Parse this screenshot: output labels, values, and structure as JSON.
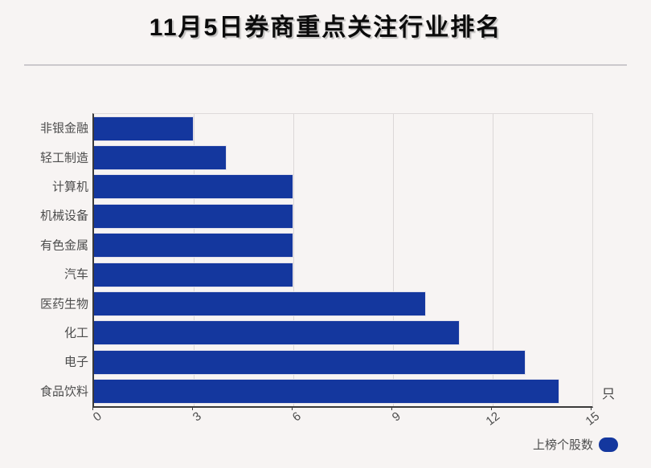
{
  "title": "11月5日券商重点关注行业排名",
  "legend": {
    "label": "上榜个股数"
  },
  "colors": {
    "bar": "#14379e",
    "background": "#f7f4f3",
    "grid": "#dbd7d7",
    "axis": "#3a3a3a",
    "label_text": "#4d4d4d",
    "title_text": "#0b0b0b"
  },
  "chart_data": {
    "type": "bar",
    "orientation": "horizontal",
    "title": "11月5日券商重点关注行业排名",
    "categories": [
      "非银金融",
      "轻工制造",
      "计算机",
      "机械设备",
      "有色金属",
      "汽车",
      "医药生物",
      "化工",
      "电子",
      "食品饮料"
    ],
    "values": [
      3,
      4,
      6,
      6,
      6,
      6,
      10,
      11,
      13,
      14
    ],
    "series_name": "上榜个股数",
    "unit": "只",
    "xlabel": "",
    "ylabel": "",
    "xlim": [
      0,
      15
    ],
    "xticks": [
      0,
      3,
      6,
      9,
      12,
      15
    ],
    "grid": true,
    "legend_position": "bottom-right"
  }
}
